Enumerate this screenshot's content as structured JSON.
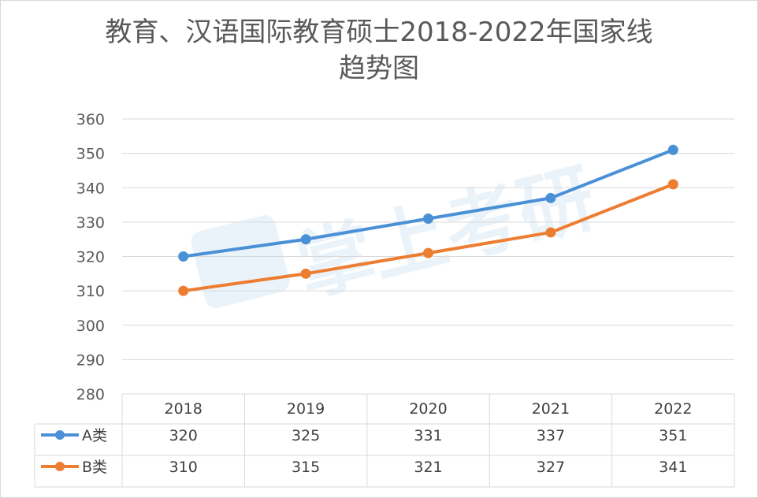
{
  "chart_data": {
    "type": "line",
    "title_lines": [
      "教育、汉语国际教育硕士2018-2022年国家线",
      "趋势图"
    ],
    "categories": [
      "2018",
      "2019",
      "2020",
      "2021",
      "2022"
    ],
    "series": [
      {
        "name": "A类",
        "values": [
          320,
          325,
          331,
          337,
          351
        ],
        "color": "#4a90d6"
      },
      {
        "name": "B类",
        "values": [
          310,
          315,
          321,
          327,
          341
        ],
        "color": "#ed7d31"
      }
    ],
    "ylim": [
      280,
      360
    ],
    "yticks": [
      360,
      350,
      340,
      330,
      320,
      310,
      300,
      290,
      280
    ],
    "grid": true,
    "data_table": true,
    "watermark_text": "掌上考研"
  }
}
